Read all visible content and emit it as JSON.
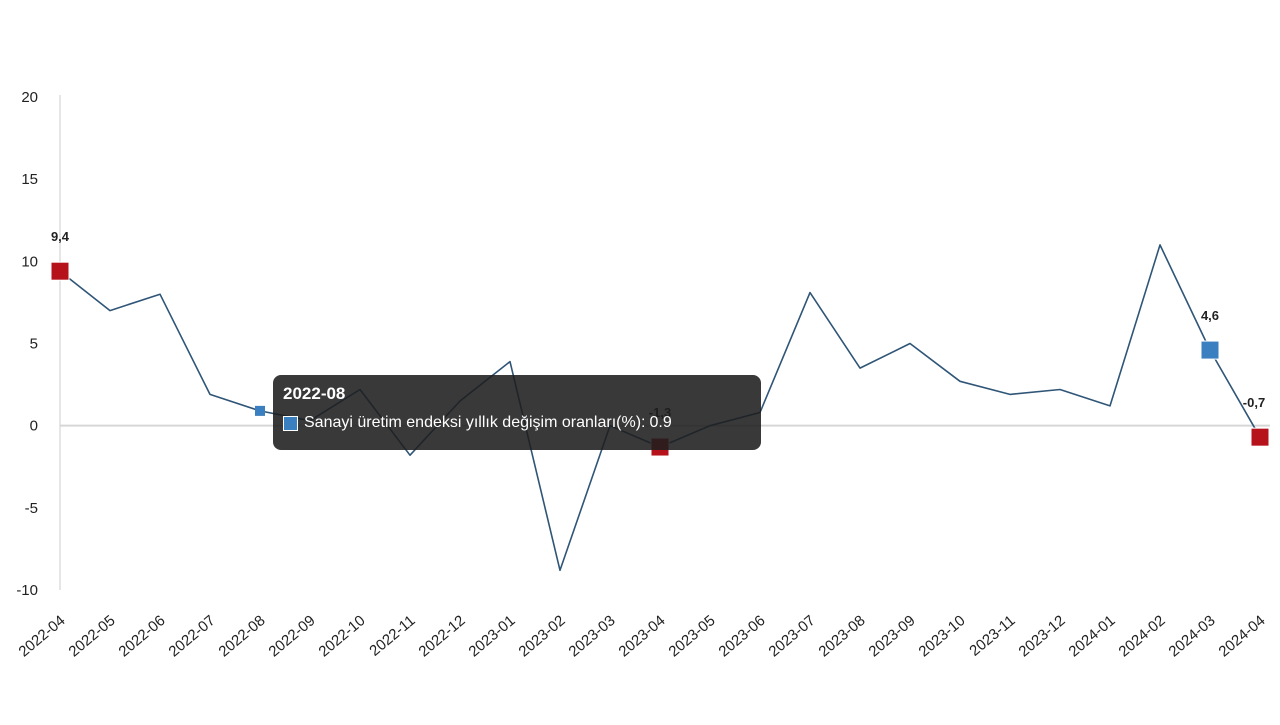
{
  "chart_data": {
    "type": "line",
    "x": [
      "2022-04",
      "2022-05",
      "2022-06",
      "2022-07",
      "2022-08",
      "2022-09",
      "2022-10",
      "2022-11",
      "2022-12",
      "2023-01",
      "2023-02",
      "2023-03",
      "2023-04",
      "2023-05",
      "2023-06",
      "2023-07",
      "2023-08",
      "2023-09",
      "2023-10",
      "2023-11",
      "2023-12",
      "2024-01",
      "2024-02",
      "2024-03",
      "2024-04"
    ],
    "series": [
      {
        "name": "Sanayi üretim endeksi yıllık değişim oranları(%)",
        "values": [
          9.4,
          7.0,
          8.0,
          1.9,
          0.9,
          0.3,
          2.2,
          -1.8,
          1.5,
          3.9,
          -8.8,
          0.0,
          -1.3,
          0.0,
          0.8,
          8.1,
          3.5,
          5.0,
          2.7,
          1.9,
          2.2,
          1.2,
          11.0,
          4.6,
          -0.7
        ]
      }
    ],
    "ylim": [
      -10,
      20
    ],
    "yticks": [
      "-10",
      "-5",
      "0",
      "5",
      "10",
      "15",
      "20"
    ],
    "markers": [
      {
        "x": "2022-04",
        "label": "9,4",
        "color": "#b5121b"
      },
      {
        "x": "2023-04",
        "label": "-1,3",
        "color": "#b5121b"
      },
      {
        "x": "2024-03",
        "label": "4,6",
        "color": "#3a7fbf"
      },
      {
        "x": "2024-04",
        "label": "-0,7",
        "color": "#b5121b"
      }
    ],
    "title": "",
    "xlabel": "",
    "ylabel": "",
    "grid": false,
    "line_color": "#2f5577",
    "zero_line_color": "#d6d6d6"
  },
  "tooltip": {
    "title": "2022-08",
    "series_label": "Sanayi üretim endeksi yıllık değişim oranları(%):",
    "value": "0.9",
    "swatch_color": "#3a7fbf",
    "hover_x": "2022-08"
  }
}
